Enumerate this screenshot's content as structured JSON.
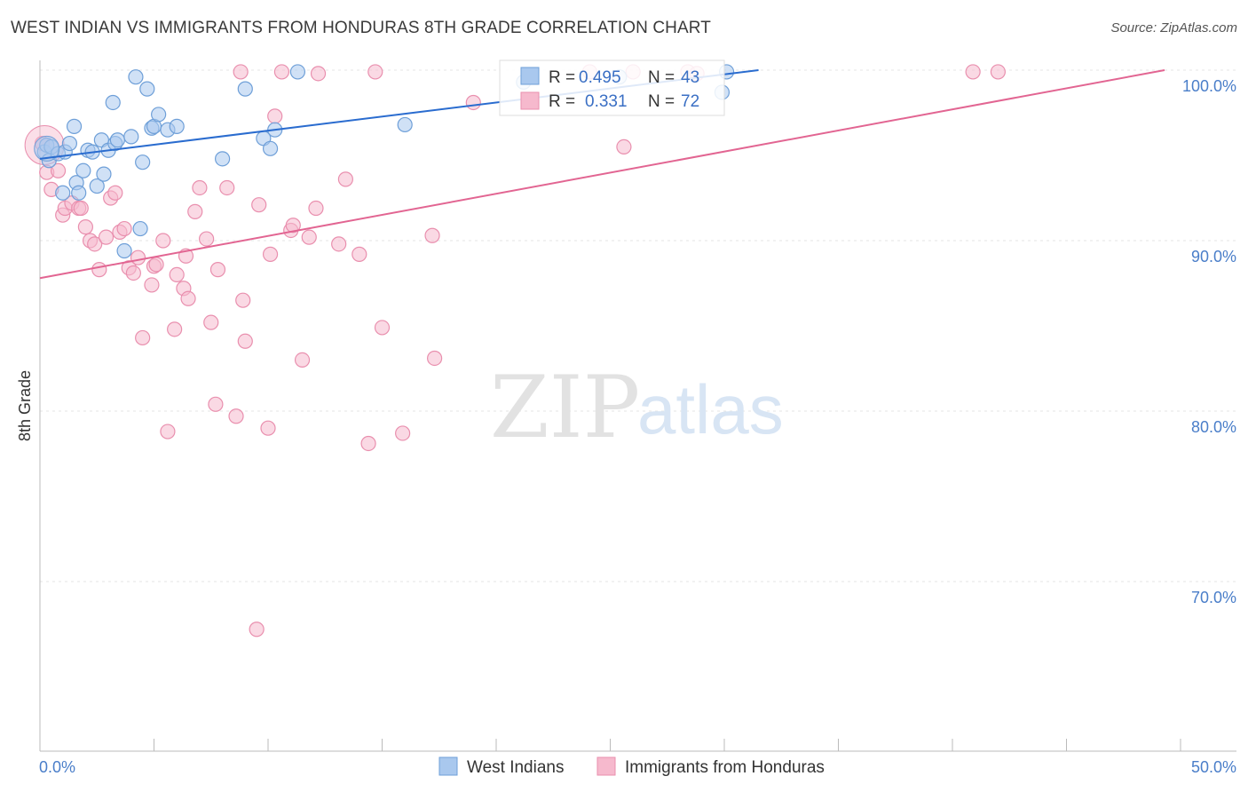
{
  "header": {
    "title": "WEST INDIAN VS IMMIGRANTS FROM HONDURAS 8TH GRADE CORRELATION CHART",
    "source": "Source: ZipAtlas.com"
  },
  "watermark": {
    "zip": "ZIP",
    "atlas": "atlas"
  },
  "colors": {
    "blue_fill": "#a9c8ee",
    "blue_stroke": "#6e9fd8",
    "blue_line": "#2a6ccf",
    "pink_fill": "#f6b9cd",
    "pink_stroke": "#e98fae",
    "pink_line": "#e26592",
    "grid": "#e6e6e6",
    "tick_text": "#4a7ec9"
  },
  "chart_data": {
    "type": "scatter",
    "title": "WEST INDIAN VS IMMIGRANTS FROM HONDURAS 8TH GRADE CORRELATION CHART",
    "xlabel": "",
    "ylabel": "8th Grade",
    "xlim": [
      0,
      50
    ],
    "ylim": [
      59.5,
      101.5
    ],
    "x_tick_labels": [
      "0.0%",
      "50.0%"
    ],
    "y_ticks": [
      100,
      90,
      80,
      70
    ],
    "y_tick_labels": [
      "100.0%",
      "90.0%",
      "80.0%",
      "70.0%"
    ],
    "grid": true,
    "legend": {
      "position": "top-center",
      "rows": [
        {
          "r_label": "R =",
          "r_value": "0.495",
          "n_label": "N =",
          "n_value": "43"
        },
        {
          "r_label": "R =",
          "r_value": "0.331",
          "n_label": "N =",
          "n_value": "72"
        }
      ]
    },
    "series": [
      {
        "name": "West Indians",
        "color": "blue",
        "trend": {
          "x": [
            0,
            31.5
          ],
          "y": [
            94.8,
            100.0
          ]
        },
        "points": [
          {
            "x": 0.2,
            "y": 95.2
          },
          {
            "x": 0.3,
            "y": 95.6
          },
          {
            "x": 0.4,
            "y": 94.7
          },
          {
            "x": 0.5,
            "y": 95.5
          },
          {
            "x": 0.8,
            "y": 95.1
          },
          {
            "x": 1.0,
            "y": 92.8
          },
          {
            "x": 1.1,
            "y": 95.2
          },
          {
            "x": 1.3,
            "y": 95.7
          },
          {
            "x": 1.5,
            "y": 96.7
          },
          {
            "x": 1.6,
            "y": 93.4
          },
          {
            "x": 1.7,
            "y": 92.8
          },
          {
            "x": 1.9,
            "y": 94.1
          },
          {
            "x": 2.1,
            "y": 95.3
          },
          {
            "x": 2.3,
            "y": 95.2
          },
          {
            "x": 2.5,
            "y": 93.2
          },
          {
            "x": 2.7,
            "y": 95.9
          },
          {
            "x": 2.8,
            "y": 93.9
          },
          {
            "x": 3.0,
            "y": 95.3
          },
          {
            "x": 3.2,
            "y": 98.1
          },
          {
            "x": 3.3,
            "y": 95.7
          },
          {
            "x": 3.4,
            "y": 95.9
          },
          {
            "x": 3.7,
            "y": 89.4
          },
          {
            "x": 4.0,
            "y": 96.1
          },
          {
            "x": 4.2,
            "y": 99.6
          },
          {
            "x": 4.4,
            "y": 90.7
          },
          {
            "x": 4.5,
            "y": 94.6
          },
          {
            "x": 4.7,
            "y": 98.9
          },
          {
            "x": 4.9,
            "y": 96.6
          },
          {
            "x": 5.0,
            "y": 96.7
          },
          {
            "x": 5.2,
            "y": 97.4
          },
          {
            "x": 5.6,
            "y": 96.5
          },
          {
            "x": 6.0,
            "y": 96.7
          },
          {
            "x": 8.0,
            "y": 94.8
          },
          {
            "x": 9.0,
            "y": 98.9
          },
          {
            "x": 9.8,
            "y": 96.0
          },
          {
            "x": 10.1,
            "y": 95.4
          },
          {
            "x": 10.3,
            "y": 96.5
          },
          {
            "x": 11.3,
            "y": 99.9
          },
          {
            "x": 16.0,
            "y": 96.8
          },
          {
            "x": 21.2,
            "y": 99.3
          },
          {
            "x": 25.4,
            "y": 99.6
          },
          {
            "x": 29.9,
            "y": 98.7
          },
          {
            "x": 30.1,
            "y": 99.9
          }
        ]
      },
      {
        "name": "Immigrants from Honduras",
        "color": "pink",
        "trend": {
          "x": [
            0,
            49.3
          ],
          "y": [
            87.8,
            100.0
          ]
        },
        "points": [
          {
            "x": 0.1,
            "y": 95.7
          },
          {
            "x": 0.3,
            "y": 94.0
          },
          {
            "x": 0.5,
            "y": 93.0
          },
          {
            "x": 0.8,
            "y": 94.1
          },
          {
            "x": 1.0,
            "y": 91.5
          },
          {
            "x": 1.1,
            "y": 91.9
          },
          {
            "x": 1.4,
            "y": 92.2
          },
          {
            "x": 1.7,
            "y": 91.9
          },
          {
            "x": 1.8,
            "y": 91.9
          },
          {
            "x": 2.0,
            "y": 90.8
          },
          {
            "x": 2.2,
            "y": 90.0
          },
          {
            "x": 2.4,
            "y": 89.8
          },
          {
            "x": 2.6,
            "y": 88.3
          },
          {
            "x": 2.9,
            "y": 90.2
          },
          {
            "x": 3.1,
            "y": 92.5
          },
          {
            "x": 3.3,
            "y": 92.8
          },
          {
            "x": 3.5,
            "y": 90.5
          },
          {
            "x": 3.7,
            "y": 90.7
          },
          {
            "x": 3.9,
            "y": 88.4
          },
          {
            "x": 4.1,
            "y": 88.1
          },
          {
            "x": 4.3,
            "y": 89.0
          },
          {
            "x": 4.5,
            "y": 84.3
          },
          {
            "x": 4.9,
            "y": 87.4
          },
          {
            "x": 5.0,
            "y": 88.5
          },
          {
            "x": 5.1,
            "y": 88.6
          },
          {
            "x": 5.4,
            "y": 90.0
          },
          {
            "x": 5.6,
            "y": 78.8
          },
          {
            "x": 5.9,
            "y": 84.8
          },
          {
            "x": 6.0,
            "y": 88.0
          },
          {
            "x": 6.3,
            "y": 87.2
          },
          {
            "x": 6.4,
            "y": 89.1
          },
          {
            "x": 6.5,
            "y": 86.6
          },
          {
            "x": 6.8,
            "y": 91.7
          },
          {
            "x": 7.0,
            "y": 93.1
          },
          {
            "x": 7.3,
            "y": 90.1
          },
          {
            "x": 7.5,
            "y": 85.2
          },
          {
            "x": 7.7,
            "y": 80.4
          },
          {
            "x": 7.8,
            "y": 88.3
          },
          {
            "x": 8.2,
            "y": 93.1
          },
          {
            "x": 8.6,
            "y": 79.7
          },
          {
            "x": 8.8,
            "y": 99.9
          },
          {
            "x": 8.9,
            "y": 86.5
          },
          {
            "x": 9.0,
            "y": 84.1
          },
          {
            "x": 9.5,
            "y": 67.2
          },
          {
            "x": 9.6,
            "y": 92.1
          },
          {
            "x": 10.0,
            "y": 79.0
          },
          {
            "x": 10.1,
            "y": 89.2
          },
          {
            "x": 10.3,
            "y": 97.3
          },
          {
            "x": 10.6,
            "y": 99.9
          },
          {
            "x": 11.0,
            "y": 90.6
          },
          {
            "x": 11.1,
            "y": 90.9
          },
          {
            "x": 11.5,
            "y": 83.0
          },
          {
            "x": 11.8,
            "y": 90.2
          },
          {
            "x": 12.1,
            "y": 91.9
          },
          {
            "x": 12.2,
            "y": 99.8
          },
          {
            "x": 13.1,
            "y": 89.8
          },
          {
            "x": 13.4,
            "y": 93.6
          },
          {
            "x": 14.0,
            "y": 89.2
          },
          {
            "x": 14.4,
            "y": 78.1
          },
          {
            "x": 14.7,
            "y": 99.9
          },
          {
            "x": 15.0,
            "y": 84.9
          },
          {
            "x": 15.9,
            "y": 78.7
          },
          {
            "x": 17.2,
            "y": 90.3
          },
          {
            "x": 17.3,
            "y": 83.1
          },
          {
            "x": 19.0,
            "y": 98.1
          },
          {
            "x": 24.1,
            "y": 99.9
          },
          {
            "x": 25.6,
            "y": 95.5
          },
          {
            "x": 26.0,
            "y": 99.9
          },
          {
            "x": 28.4,
            "y": 99.9
          },
          {
            "x": 28.8,
            "y": 99.8
          },
          {
            "x": 40.9,
            "y": 99.9
          },
          {
            "x": 42.0,
            "y": 99.9
          }
        ]
      }
    ]
  }
}
